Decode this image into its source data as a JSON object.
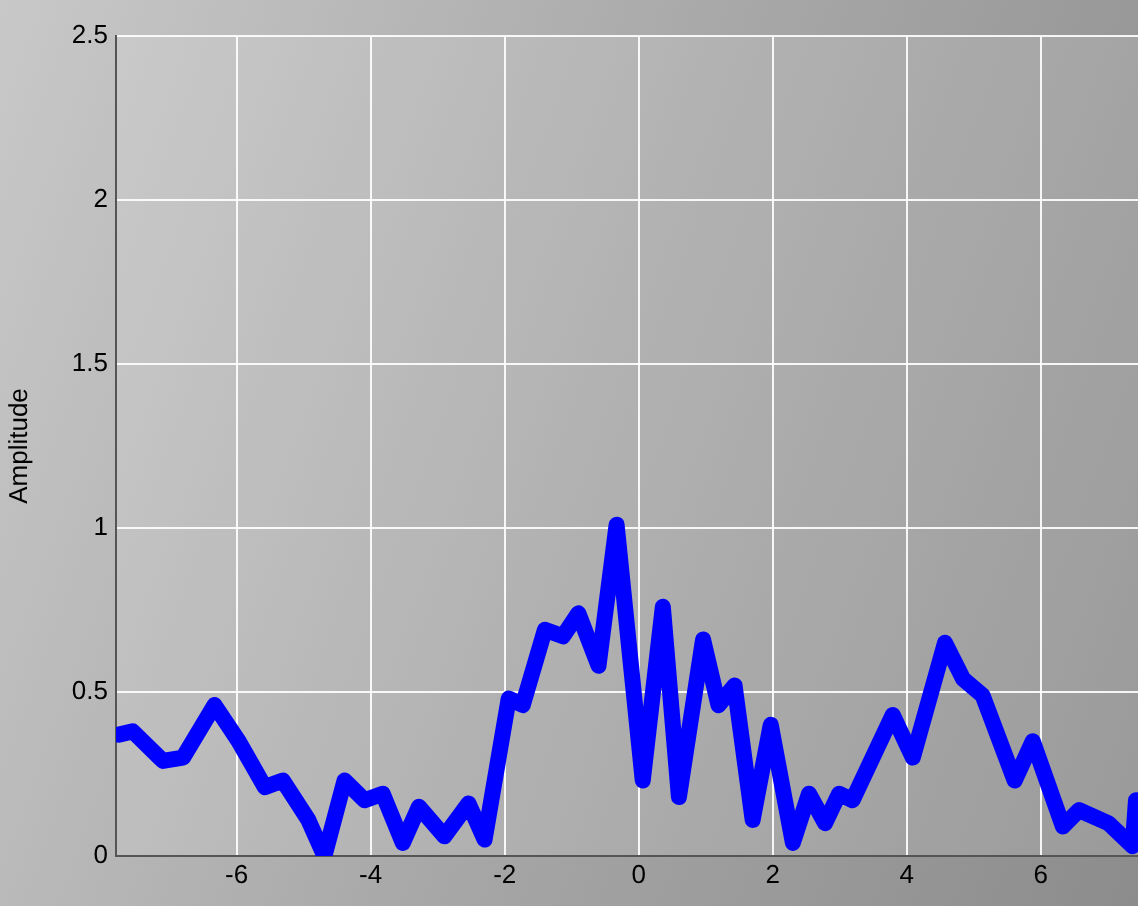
{
  "chart_data": {
    "type": "line",
    "ylabel": "Amplitude",
    "xlim": [
      -7.8,
      7.45
    ],
    "ylim": [
      0,
      2.5
    ],
    "xticks": [
      -6,
      -4,
      -2,
      0,
      2,
      4,
      6
    ],
    "yticks": [
      0,
      0.5,
      1,
      1.5,
      2,
      2.5
    ],
    "grid": true,
    "marker": "none",
    "line_style": "solid",
    "series": [
      {
        "color": "#0000ff",
        "x": [
          -7.76,
          -7.55,
          -7.1,
          -6.8,
          -6.33,
          -5.97,
          -5.58,
          -5.31,
          -4.93,
          -4.69,
          -4.39,
          -4.09,
          -3.82,
          -3.52,
          -3.28,
          -2.9,
          -2.54,
          -2.3,
          -1.94,
          -1.73,
          -1.4,
          -1.13,
          -0.9,
          -0.6,
          -0.33,
          0.06,
          0.36,
          0.6,
          0.96,
          1.19,
          1.43,
          1.7,
          1.97,
          2.3,
          2.54,
          2.78,
          2.99,
          3.19,
          3.79,
          4.09,
          4.57,
          4.84,
          5.13,
          5.61,
          5.88,
          6.33,
          6.57,
          7.01,
          7.37,
          7.42
        ],
        "values": [
          0.37,
          0.38,
          0.29,
          0.3,
          0.46,
          0.35,
          0.21,
          0.23,
          0.11,
          0,
          0.23,
          0.17,
          0.19,
          0.04,
          0.15,
          0.06,
          0.16,
          0.05,
          0.48,
          0.46,
          0.69,
          0.67,
          0.74,
          0.58,
          1.01,
          0.23,
          0.76,
          0.18,
          0.66,
          0.46,
          0.52,
          0.11,
          0.4,
          0.04,
          0.19,
          0.1,
          0.19,
          0.17,
          0.43,
          0.3,
          0.65,
          0.54,
          0.49,
          0.23,
          0.35,
          0.09,
          0.14,
          0.1,
          0.03,
          0.17
        ]
      }
    ]
  }
}
